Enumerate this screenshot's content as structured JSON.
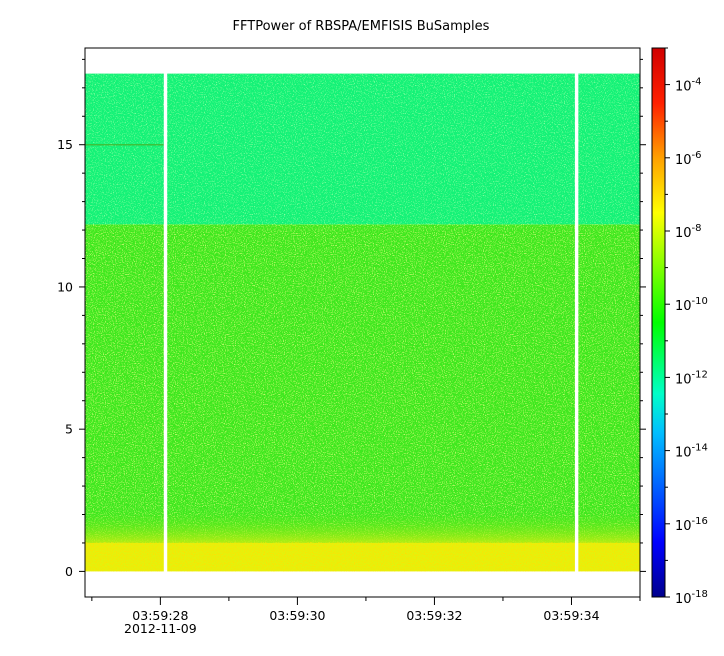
{
  "chart_data": {
    "type": "heatmap",
    "title": "FFTPower of RBSPA/EMFISIS  BuSamples",
    "xlabel": "",
    "ylabel": "",
    "x_ticks": [
      {
        "value": "03:59:28",
        "sublabel": "2012-11-09"
      },
      {
        "value": "03:59:30",
        "sublabel": ""
      },
      {
        "value": "03:59:32",
        "sublabel": ""
      },
      {
        "value": "03:59:34",
        "sublabel": ""
      }
    ],
    "x_range": [
      "03:59:26.9",
      "03:59:35.0"
    ],
    "y_ticks": [
      0,
      5,
      10,
      15
    ],
    "y_range": [
      -0.9,
      18.4
    ],
    "colorbar": {
      "scale": "log",
      "range": [
        1e-18,
        0.001
      ],
      "ticks": [
        {
          "base": "10",
          "exp": "-18"
        },
        {
          "base": "10",
          "exp": "-16"
        },
        {
          "base": "10",
          "exp": "-14"
        },
        {
          "base": "10",
          "exp": "-12"
        },
        {
          "base": "10",
          "exp": "-10"
        },
        {
          "base": "10",
          "exp": "-8"
        },
        {
          "base": "10",
          "exp": "-6"
        },
        {
          "base": "10",
          "exp": "-4"
        }
      ],
      "colormap": [
        "#00008c",
        "#0000ff",
        "#00ffff",
        "#00ff00",
        "#ffff00",
        "#ff0000",
        "#8c0000"
      ]
    },
    "data_extent": {
      "y_min": 0,
      "y_max": 17.5,
      "x_start": "03:59:26.9",
      "x_end": "03:59:35.0"
    },
    "gaps": [
      {
        "start": "03:59:28.05",
        "end": "03:59:28.10"
      },
      {
        "start": "03:59:34.05",
        "end": "03:59:34.10"
      }
    ],
    "bands": [
      {
        "y_from": 0,
        "y_to": 1.0,
        "log10_power": -8.6,
        "color": "#e3f20d"
      },
      {
        "y_from": 1.0,
        "y_to": 12.2,
        "log10_power": -10.2,
        "color": "#3ee81e"
      },
      {
        "y_from": 12.2,
        "y_to": 17.5,
        "log10_power": -11.2,
        "color": "#14f277"
      }
    ],
    "grid": false
  }
}
